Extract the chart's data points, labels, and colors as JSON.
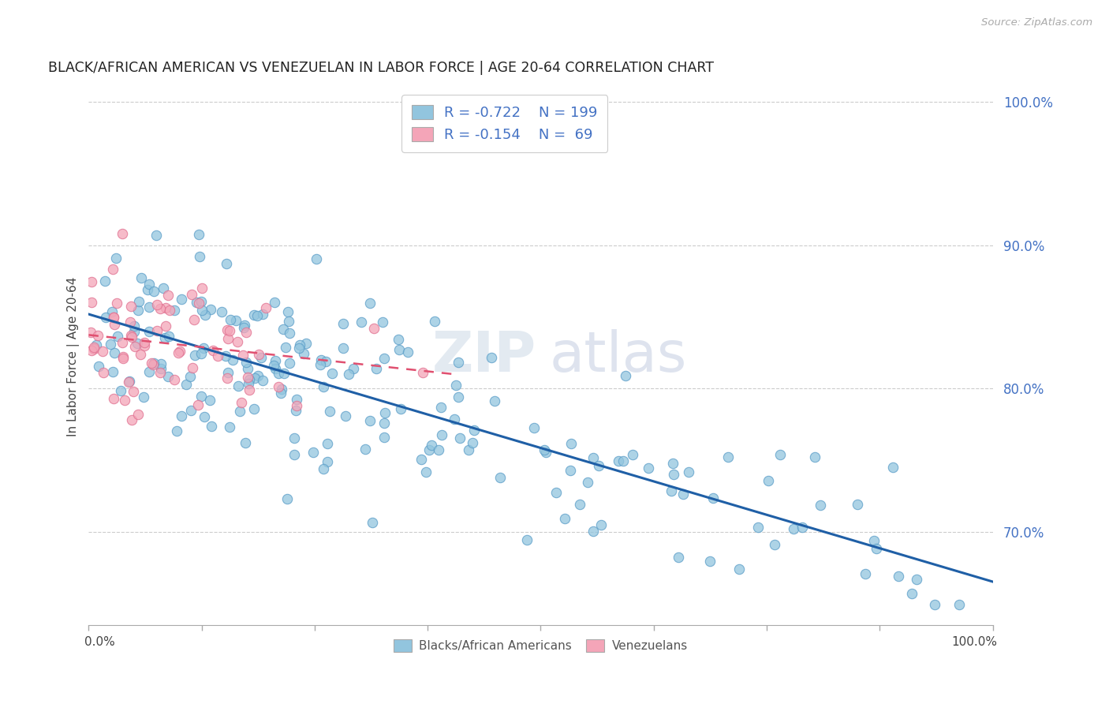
{
  "title": "BLACK/AFRICAN AMERICAN VS VENEZUELAN IN LABOR FORCE | AGE 20-64 CORRELATION CHART",
  "source": "Source: ZipAtlas.com",
  "ylabel": "In Labor Force | Age 20-64",
  "xlim": [
    0.0,
    1.0
  ],
  "ylim": [
    0.635,
    1.01
  ],
  "blue_R": -0.722,
  "blue_N": 199,
  "pink_R": -0.154,
  "pink_N": 69,
  "blue_color": "#92c5de",
  "pink_color": "#f4a5b8",
  "blue_edge_color": "#5a9dc8",
  "pink_edge_color": "#e07090",
  "blue_line_color": "#1f5fa6",
  "pink_line_color": "#e05070",
  "watermark_zip": "ZIP",
  "watermark_atlas": "atlas",
  "legend_label_blue": "Blacks/African Americans",
  "legend_label_pink": "Venezuelans",
  "ytick_vals": [
    0.7,
    0.8,
    0.9,
    1.0
  ],
  "ytick_labels": [
    "70.0%",
    "80.0%",
    "90.0%",
    "100.0%"
  ],
  "blue_seed": 42,
  "pink_seed": 7,
  "blue_intercept": 0.845,
  "blue_slope": -0.175,
  "blue_scatter": 0.03,
  "pink_intercept": 0.84,
  "pink_slope": -0.095,
  "pink_scatter": 0.025
}
